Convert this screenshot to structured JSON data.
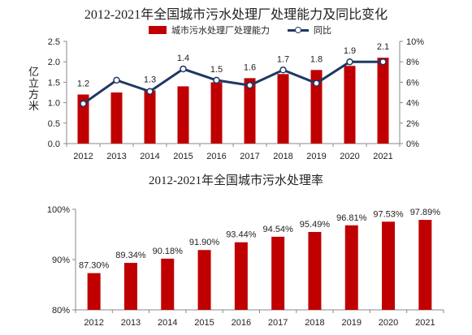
{
  "colors": {
    "bar": "#c00000",
    "line": "#1f3864",
    "axis": "#888888"
  },
  "chart_data": [
    {
      "type": "bar",
      "title": "2012-2021年全国城市污水处理厂处理能力及同比变化",
      "categories": [
        "2012",
        "2013",
        "2014",
        "2015",
        "2016",
        "2017",
        "2018",
        "2019",
        "2020",
        "2021"
      ],
      "series": [
        {
          "name": "城市污水处理厂处理能力",
          "type": "bar",
          "axis": "left",
          "values": [
            1.2,
            1.25,
            1.3,
            1.4,
            1.5,
            1.6,
            1.7,
            1.8,
            1.9,
            2.1
          ],
          "labels": [
            "1.2",
            "",
            "1.3",
            "1.4",
            "1.5",
            "1.6",
            "1.7",
            "1.8",
            "1.9",
            "2.1"
          ]
        },
        {
          "name": "同比",
          "type": "line",
          "axis": "right",
          "values": [
            3.9,
            6.2,
            5.1,
            7.3,
            6.2,
            5.7,
            7.2,
            5.9,
            8.0,
            8.0
          ]
        }
      ],
      "ylabel": "亿立方米",
      "ylim": [
        0,
        2.5
      ],
      "yticks": [
        "0.0",
        "0.5",
        "1.0",
        "1.5",
        "2.0",
        "2.5"
      ],
      "y2lim": [
        0,
        10
      ],
      "y2ticks": [
        "0%",
        "2%",
        "4%",
        "6%",
        "8%",
        "10%"
      ],
      "legend": "top"
    },
    {
      "type": "bar",
      "title": "2012-2021年全国城市污水处理率",
      "categories": [
        "2012",
        "2013",
        "2014",
        "2015",
        "2016",
        "2017",
        "2018",
        "2019",
        "2020",
        "2021"
      ],
      "values": [
        87.3,
        89.34,
        90.18,
        91.9,
        93.44,
        94.54,
        95.49,
        96.81,
        97.53,
        97.89
      ],
      "labels": [
        "87.30%",
        "89.34%",
        "90.18%",
        "91.90%",
        "93.44%",
        "94.54%",
        "95.49%",
        "96.81%",
        "97.53%",
        "97.89%"
      ],
      "ylim": [
        80,
        100
      ],
      "yticks": [
        "80%",
        "90%",
        "100%"
      ]
    }
  ]
}
